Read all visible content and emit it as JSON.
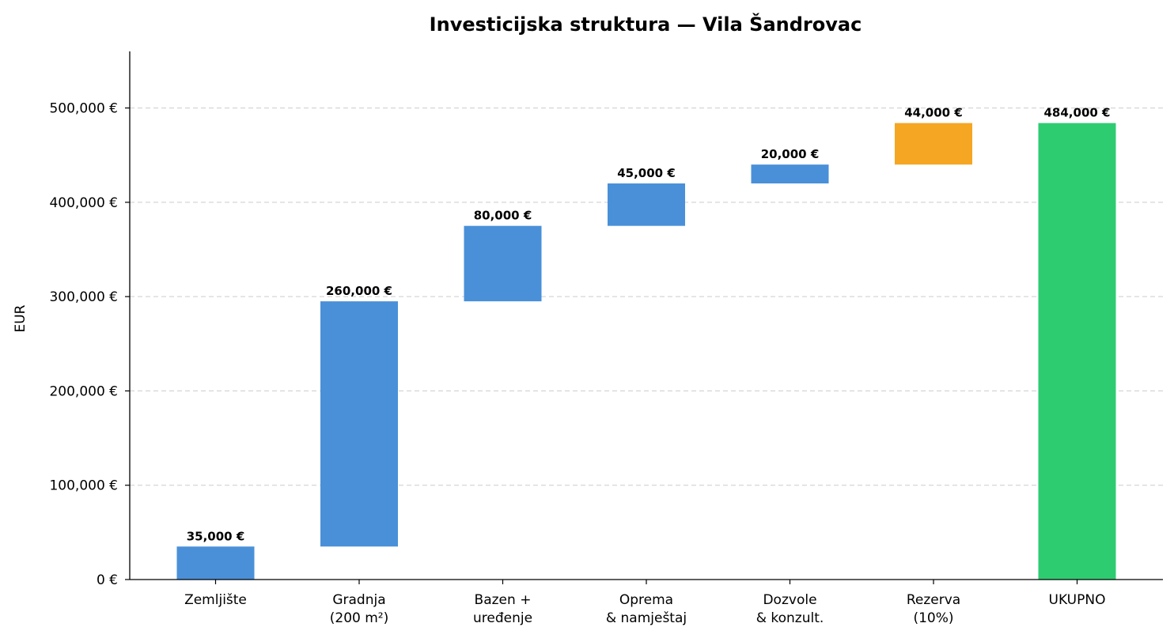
{
  "chart_data": {
    "type": "bar",
    "subtype": "waterfall",
    "title": "Investicijska struktura — Vila Šandrovac",
    "ylabel": "EUR",
    "xlabel": "",
    "ylim": [
      0,
      560000
    ],
    "y_ticks": [
      0,
      100000,
      200000,
      300000,
      400000,
      500000
    ],
    "y_tick_labels": [
      "0 €",
      "100,000 €",
      "200,000 €",
      "300,000 €",
      "400,000 €",
      "500,000 €"
    ],
    "grid": "horizontal dashed",
    "categories": [
      [
        "Zemljište"
      ],
      [
        "Gradnja",
        "(200 m²)"
      ],
      [
        "Bazen +",
        "uređenje"
      ],
      [
        "Oprema",
        "& namještaj"
      ],
      [
        "Dozvole",
        "& konzult."
      ],
      [
        "Rezerva",
        "(10%)"
      ],
      [
        "UKUPNO"
      ]
    ],
    "values": [
      35000,
      260000,
      80000,
      45000,
      20000,
      44000,
      484000
    ],
    "bases": [
      0,
      35000,
      295000,
      375000,
      420000,
      440000,
      0
    ],
    "value_labels": [
      "35,000 €",
      "260,000 €",
      "80,000 €",
      "45,000 €",
      "20,000 €",
      "44,000 €",
      "484,000 €"
    ],
    "bar_kinds": [
      "cost",
      "cost",
      "cost",
      "cost",
      "cost",
      "reserve",
      "total"
    ],
    "colors": {
      "cost": "#4A90D9",
      "reserve": "#F5A623",
      "total": "#2ECC71",
      "grid": "#cccccc",
      "axis": "#000000"
    }
  }
}
